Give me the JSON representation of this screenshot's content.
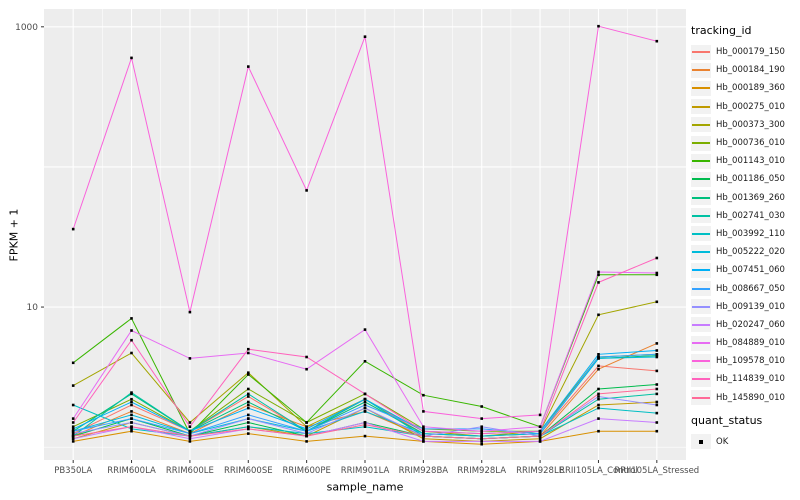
{
  "chart_data": {
    "type": "line",
    "title": "",
    "xlabel": "sample_name",
    "ylabel": "FPKM + 1",
    "legend_position": "right",
    "panel_bg": "#EDEDED",
    "grid_color": "#FFFFFF",
    "point_color": "#000000",
    "point_shape": "filled-square",
    "axis_text_color": "#4D4D4D",
    "x_categories": [
      "PB350LA",
      "RRIM600LA",
      "RRIM600LE",
      "RRIM600SE",
      "RRIM600PE",
      "RRIM901LA",
      "RRIM928BA",
      "RRIM928LA",
      "RRIM928LE",
      "RRII105LA_Control",
      "RRII105LA_Stressed"
    ],
    "y_axis": {
      "scale": "log10",
      "domain": [
        0.81,
        1340
      ],
      "ticks": [
        {
          "label": "10",
          "value": 10
        },
        {
          "label": "1000",
          "value": 1000
        }
      ],
      "gridlines_major": [
        10,
        100,
        1000
      ],
      "gridlines_minor": [
        1
      ]
    },
    "series": [
      {
        "id": "Hb_000179_150",
        "color": "#F8766D",
        "values": [
          1.25,
          2.0,
          1.3,
          2.3,
          1.3,
          2.2,
          1.25,
          1.2,
          1.25,
          3.8,
          3.5
        ]
      },
      {
        "id": "Hb_000184_190",
        "color": "#EA8331",
        "values": [
          1.2,
          1.8,
          1.25,
          2.0,
          1.4,
          1.8,
          1.2,
          1.15,
          1.2,
          3.6,
          5.5
        ]
      },
      {
        "id": "Hb_000189_360",
        "color": "#D89000",
        "values": [
          1.1,
          1.3,
          1.1,
          1.25,
          1.1,
          1.2,
          1.1,
          1.05,
          1.1,
          1.3,
          1.3
        ]
      },
      {
        "id": "Hb_000275_010",
        "color": "#C09B00",
        "values": [
          1.15,
          1.5,
          1.2,
          1.4,
          1.2,
          1.9,
          1.15,
          1.1,
          1.15,
          2.0,
          2.1
        ]
      },
      {
        "id": "Hb_000373_300",
        "color": "#A3A500",
        "values": [
          2.75,
          4.7,
          1.5,
          3.4,
          1.4,
          2.2,
          1.3,
          1.2,
          1.3,
          8.8,
          10.9
        ]
      },
      {
        "id": "Hb_000736_010",
        "color": "#7CAE00",
        "values": [
          1.4,
          2.2,
          1.3,
          2.6,
          1.5,
          2.4,
          1.35,
          1.3,
          1.3,
          4.4,
          4.6
        ]
      },
      {
        "id": "Hb_001143_010",
        "color": "#39B600",
        "values": [
          4.0,
          8.3,
          1.25,
          3.3,
          1.5,
          4.1,
          2.35,
          1.95,
          1.4,
          17.0,
          17.0
        ]
      },
      {
        "id": "Hb_001186_050",
        "color": "#00BB4E",
        "values": [
          1.2,
          1.6,
          1.2,
          1.5,
          1.2,
          1.5,
          1.2,
          1.15,
          1.2,
          2.6,
          2.8
        ]
      },
      {
        "id": "Hb_001369_260",
        "color": "#00BF7D",
        "values": [
          1.3,
          2.4,
          1.3,
          2.1,
          1.3,
          2.1,
          1.25,
          1.2,
          1.25,
          4.3,
          4.5
        ]
      },
      {
        "id": "Hb_002741_030",
        "color": "#00C1A3",
        "values": [
          1.2,
          2.45,
          1.3,
          2.4,
          1.3,
          2.2,
          1.2,
          1.15,
          1.2,
          2.2,
          2.4
        ]
      },
      {
        "id": "Hb_003992_110",
        "color": "#00BFC4",
        "values": [
          2.0,
          1.35,
          1.2,
          1.4,
          1.25,
          1.4,
          1.2,
          1.15,
          1.2,
          1.9,
          1.75
        ]
      },
      {
        "id": "Hb_005222_020",
        "color": "#00BBDA",
        "values": [
          1.3,
          1.7,
          1.25,
          1.6,
          1.3,
          1.8,
          1.25,
          1.2,
          1.25,
          4.3,
          4.4
        ]
      },
      {
        "id": "Hb_007451_060",
        "color": "#00B0F6",
        "values": [
          1.35,
          2.1,
          1.3,
          1.9,
          1.35,
          2.2,
          1.3,
          1.25,
          1.3,
          4.6,
          4.9
        ]
      },
      {
        "id": "Hb_008667_050",
        "color": "#35A2FF",
        "values": [
          1.3,
          1.6,
          1.25,
          1.7,
          1.3,
          2.0,
          1.35,
          1.35,
          1.25,
          4.4,
          4.6
        ]
      },
      {
        "id": "Hb_009139_010",
        "color": "#9590FF",
        "values": [
          1.25,
          1.5,
          1.2,
          1.6,
          1.25,
          1.9,
          1.2,
          1.4,
          1.2,
          2.3,
          2.0
        ]
      },
      {
        "id": "Hb_020247_060",
        "color": "#C77CFF",
        "values": [
          1.15,
          1.4,
          1.15,
          1.35,
          1.2,
          1.5,
          1.1,
          1.1,
          1.1,
          1.6,
          1.5
        ]
      },
      {
        "id": "Hb_084889_010",
        "color": "#E76BF3",
        "values": [
          1.6,
          6.8,
          4.3,
          4.7,
          3.6,
          6.9,
          1.4,
          1.3,
          1.4,
          17.8,
          17.5
        ]
      },
      {
        "id": "Hb_109578_010",
        "color": "#FA62DB",
        "values": [
          36,
          600,
          9.2,
          520,
          68,
          850,
          1.8,
          1.6,
          1.7,
          1010,
          790
        ]
      },
      {
        "id": "Hb_114839_010",
        "color": "#FF62BC",
        "values": [
          1.5,
          5.8,
          1.4,
          5.0,
          4.4,
          2.4,
          1.3,
          1.25,
          1.3,
          15.0,
          22.4
        ]
      },
      {
        "id": "Hb_145890_010",
        "color": "#FF6A98",
        "values": [
          1.2,
          1.4,
          1.2,
          1.35,
          1.2,
          1.45,
          1.2,
          1.15,
          1.2,
          2.4,
          2.6
        ]
      }
    ]
  },
  "legend": {
    "tracking_title": "tracking_id",
    "quant_title": "quant_status",
    "quant_items": [
      {
        "label": "OK"
      }
    ]
  }
}
